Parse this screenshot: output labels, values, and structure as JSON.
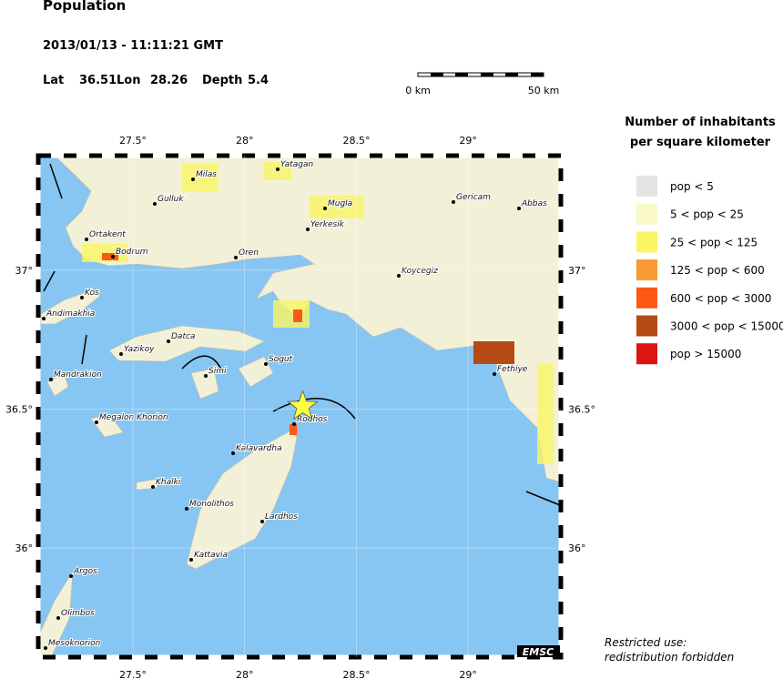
{
  "header": {
    "title": "Population",
    "datetime": "2013/01/13 - 11:11:21 GMT",
    "lat_label": "Lat",
    "lat": 36.51,
    "lon_label": "Lon",
    "lon": 28.26,
    "depth_label": "Depth",
    "depth": 5.4
  },
  "scale_bar": {
    "start": "0 km",
    "end": "50 km"
  },
  "map": {
    "lonlim": [
      27.076,
      29.415
    ],
    "latlim": [
      35.607,
      37.413
    ],
    "lon_ticks": [
      {
        "value": 27.5,
        "label": "27.5°"
      },
      {
        "value": 28,
        "label": "28°"
      },
      {
        "value": 28.5,
        "label": "28.5°"
      },
      {
        "value": 29,
        "label": "29°"
      }
    ],
    "lat_ticks": [
      {
        "value": 37,
        "label": "37°"
      },
      {
        "value": 36.5,
        "label": "36.5°"
      },
      {
        "value": 36,
        "label": "36°"
      }
    ],
    "towns": [
      "Milas",
      "Yatagan",
      "Gulluk",
      "Mugla",
      "Yerkesik",
      "Gericam",
      "Abbas",
      "Ortakent",
      "Bodrum",
      "Oren",
      "Koycegiz",
      "Kos",
      "Andimakhia",
      "Datca",
      "Yazikoy",
      "Simi",
      "Sogut",
      "Mandrakion",
      "Fethiye",
      "Rodhos",
      "Megalon Khorion",
      "Kalavardha",
      "Khalki",
      "Monolithos",
      "Lardhos",
      "Kattavia",
      "Argos",
      "Olimbos",
      "Mesoknorion"
    ],
    "credit": "EMSC"
  },
  "legend": {
    "title_lines": [
      "Number of inhabitants",
      "per square kilometer"
    ],
    "items": [
      {
        "label": "pop < 5",
        "color": "#e4e4e4"
      },
      {
        "label": "5 < pop < 25",
        "color": "#fafac8"
      },
      {
        "label": "25 < pop < 125",
        "color": "#faf564"
      },
      {
        "label": "125 < pop < 600",
        "color": "#fa9a32"
      },
      {
        "label": "600 < pop < 3000",
        "color": "#fa5a14"
      },
      {
        "label": "3000 < pop < 15000",
        "color": "#b44a14"
      },
      {
        "label": "pop > 15000",
        "color": "#dc1414"
      }
    ]
  },
  "notice_lines": [
    "Restricted use:",
    "redistribution forbidden"
  ]
}
